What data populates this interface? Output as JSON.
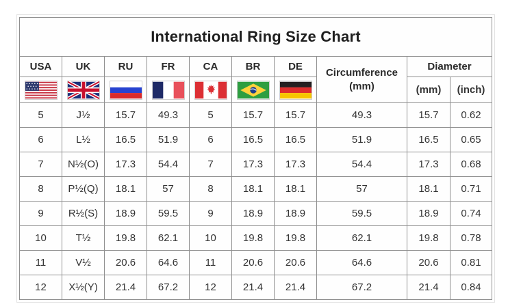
{
  "title": "International Ring Size Chart",
  "header": {
    "countries": [
      {
        "label": "USA",
        "icon": "usa-flag"
      },
      {
        "label": "UK",
        "icon": "uk-flag"
      },
      {
        "label": "RU",
        "icon": "russia-flag"
      },
      {
        "label": "FR",
        "icon": "france-flag"
      },
      {
        "label": "CA",
        "icon": "canada-flag"
      },
      {
        "label": "BR",
        "icon": "brazil-flag"
      },
      {
        "label": "DE",
        "icon": "germany-flag"
      }
    ],
    "circumference_line1": "Circumference",
    "circumference_line2": "(mm)",
    "diameter_label": "Diameter",
    "diameter_mm": "(mm)",
    "diameter_inch": "(inch)"
  },
  "chart_data": {
    "type": "table",
    "title": "International Ring Size Chart",
    "columns": [
      "USA",
      "UK",
      "RU",
      "FR",
      "CA",
      "BR",
      "DE",
      "Circumference (mm)",
      "Diameter (mm)",
      "Diameter (inch)"
    ],
    "rows": [
      [
        "5",
        "J½",
        "15.7",
        "49.3",
        "5",
        "15.7",
        "15.7",
        "49.3",
        "15.7",
        "0.62"
      ],
      [
        "6",
        "L½",
        "16.5",
        "51.9",
        "6",
        "16.5",
        "16.5",
        "51.9",
        "16.5",
        "0.65"
      ],
      [
        "7",
        "N½(O)",
        "17.3",
        "54.4",
        "7",
        "17.3",
        "17.3",
        "54.4",
        "17.3",
        "0.68"
      ],
      [
        "8",
        "P½(Q)",
        "18.1",
        "57",
        "8",
        "18.1",
        "18.1",
        "57",
        "18.1",
        "0.71"
      ],
      [
        "9",
        "R½(S)",
        "18.9",
        "59.5",
        "9",
        "18.9",
        "18.9",
        "59.5",
        "18.9",
        "0.74"
      ],
      [
        "10",
        "T½",
        "19.8",
        "62.1",
        "10",
        "19.8",
        "19.8",
        "62.1",
        "19.8",
        "0.78"
      ],
      [
        "11",
        "V½",
        "20.6",
        "64.6",
        "11",
        "20.6",
        "20.6",
        "64.6",
        "20.6",
        "0.81"
      ],
      [
        "12",
        "X½(Y)",
        "21.4",
        "67.2",
        "12",
        "21.4",
        "21.4",
        "67.2",
        "21.4",
        "0.84"
      ]
    ]
  },
  "colors": {
    "border": "#8f8f8f",
    "text": "#333333",
    "title_text": "#1f1f1f",
    "background": "#ffffff"
  }
}
